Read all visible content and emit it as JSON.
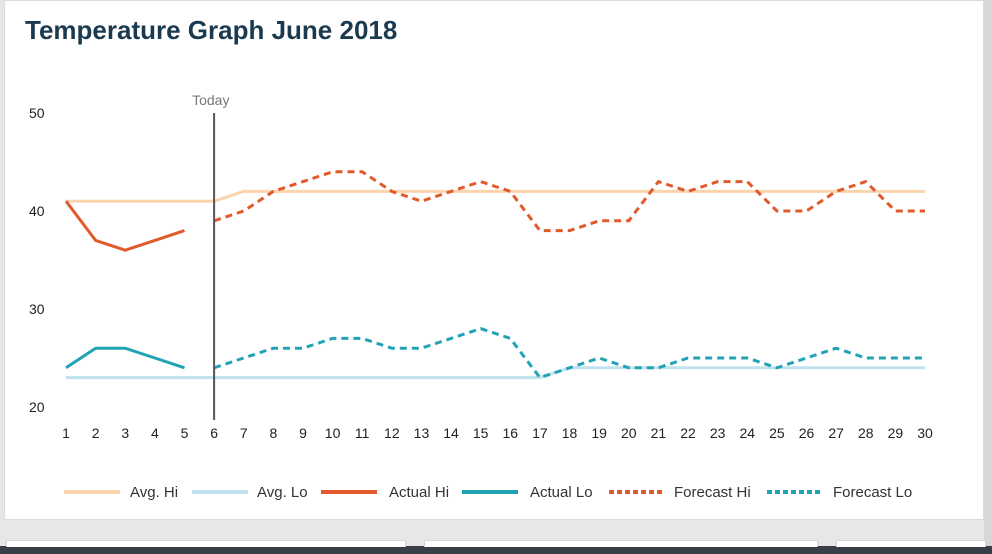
{
  "page": {
    "title": "Temperature Graph June 2018"
  },
  "chart_data": {
    "type": "line",
    "title": "Temperature Graph June 2018",
    "xlabel": "",
    "ylabel": "",
    "x": [
      1,
      2,
      3,
      4,
      5,
      6,
      7,
      8,
      9,
      10,
      11,
      12,
      13,
      14,
      15,
      16,
      17,
      18,
      19,
      20,
      21,
      22,
      23,
      24,
      25,
      26,
      27,
      28,
      29,
      30
    ],
    "xlim": [
      1,
      30
    ],
    "ylim": [
      20,
      50
    ],
    "yticks": [
      20,
      30,
      40,
      50
    ],
    "grid": false,
    "legend_position": "bottom",
    "today": {
      "label": "Today",
      "x": 6
    },
    "series": [
      {
        "name": "Avg. Hi",
        "color": "#fbd3ad",
        "style": "solid",
        "x": [
          1,
          2,
          3,
          4,
          5,
          6,
          7,
          8,
          9,
          10,
          11,
          12,
          13,
          14,
          15,
          16,
          17,
          18,
          19,
          20,
          21,
          22,
          23,
          24,
          25,
          26,
          27,
          28,
          29,
          30
        ],
        "values": [
          41,
          41,
          41,
          41,
          41,
          41,
          42,
          42,
          42,
          42,
          42,
          42,
          42,
          42,
          42,
          42,
          42,
          42,
          42,
          42,
          42,
          42,
          42,
          42,
          42,
          42,
          42,
          42,
          42,
          42
        ]
      },
      {
        "name": "Avg. Lo",
        "color": "#bfe3ec",
        "style": "solid",
        "x": [
          1,
          2,
          3,
          4,
          5,
          6,
          7,
          8,
          9,
          10,
          11,
          12,
          13,
          14,
          15,
          16,
          17,
          18,
          19,
          20,
          21,
          22,
          23,
          24,
          25,
          26,
          27,
          28,
          29,
          30
        ],
        "values": [
          23,
          23,
          23,
          23,
          23,
          23,
          23,
          23,
          23,
          23,
          23,
          23,
          23,
          23,
          23,
          23,
          23,
          24,
          24,
          24,
          24,
          24,
          24,
          24,
          24,
          24,
          24,
          24,
          24,
          24
        ]
      },
      {
        "name": "Actual Hi",
        "color": "#e05a2b",
        "style": "solid",
        "x": [
          1,
          2,
          3,
          4,
          5
        ],
        "values": [
          41,
          37,
          36,
          37,
          38
        ]
      },
      {
        "name": "Actual Lo",
        "color": "#22a3b5",
        "style": "solid",
        "x": [
          1,
          2,
          3,
          4,
          5
        ],
        "values": [
          24,
          26,
          26,
          25,
          24
        ]
      },
      {
        "name": "Forecast Hi",
        "color": "#e05a2b",
        "style": "dashed",
        "x": [
          6,
          7,
          8,
          9,
          10,
          11,
          12,
          13,
          14,
          15,
          16,
          17,
          18,
          19,
          20,
          21,
          22,
          23,
          24,
          25,
          26,
          27,
          28,
          29,
          30
        ],
        "values": [
          39,
          40,
          42,
          43,
          44,
          44,
          42,
          41,
          42,
          43,
          42,
          38,
          38,
          39,
          39,
          43,
          42,
          43,
          43,
          40,
          40,
          42,
          43,
          40,
          40
        ]
      },
      {
        "name": "Forecast Lo",
        "color": "#22a3b5",
        "style": "dashed",
        "x": [
          6,
          7,
          8,
          9,
          10,
          11,
          12,
          13,
          14,
          15,
          16,
          17,
          18,
          19,
          20,
          21,
          22,
          23,
          24,
          25,
          26,
          27,
          28,
          29,
          30
        ],
        "values": [
          24,
          25,
          26,
          26,
          27,
          27,
          26,
          26,
          27,
          28,
          27,
          23,
          24,
          25,
          24,
          24,
          25,
          25,
          25,
          24,
          25,
          26,
          25,
          25,
          25
        ]
      }
    ]
  }
}
